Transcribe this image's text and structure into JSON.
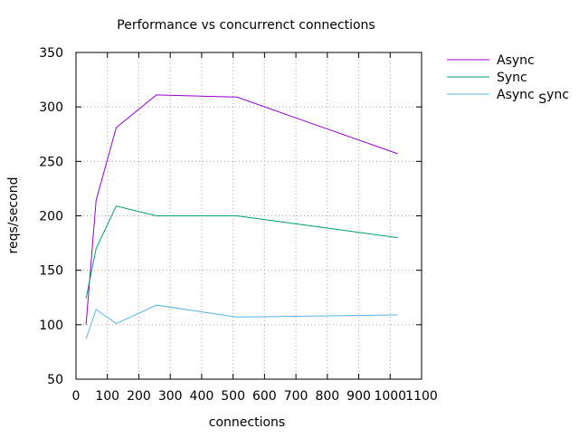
{
  "chart_data": {
    "type": "line",
    "title": "Performance vs concurrenct connections",
    "xlabel": "connections",
    "ylabel": "reqs/second",
    "xlim": [
      0,
      1100
    ],
    "ylim": [
      50,
      350
    ],
    "x_ticks": [
      0,
      100,
      200,
      300,
      400,
      500,
      600,
      700,
      800,
      900,
      1000,
      1100
    ],
    "y_ticks": [
      50,
      100,
      150,
      200,
      250,
      300,
      350
    ],
    "grid": true,
    "grid_style": "dotted",
    "legend_position": "outside-right-top",
    "series": [
      {
        "name": "Async",
        "color": "#9400d3",
        "x": [
          32,
          64,
          128,
          256,
          512,
          1024
        ],
        "y": [
          100,
          214,
          281,
          311,
          309,
          257
        ]
      },
      {
        "name": "Sync",
        "color": "#009e73",
        "x": [
          32,
          64,
          128,
          256,
          512,
          1024
        ],
        "y": [
          124,
          170,
          209,
          200,
          200,
          180
        ]
      },
      {
        "name": "Async Sync",
        "legend_parts": [
          "Async ",
          "S",
          "ync"
        ],
        "color": "#56b4e9",
        "x": [
          32,
          64,
          128,
          256,
          512,
          1024
        ],
        "y": [
          87,
          114,
          101,
          118,
          107,
          109
        ]
      }
    ]
  }
}
